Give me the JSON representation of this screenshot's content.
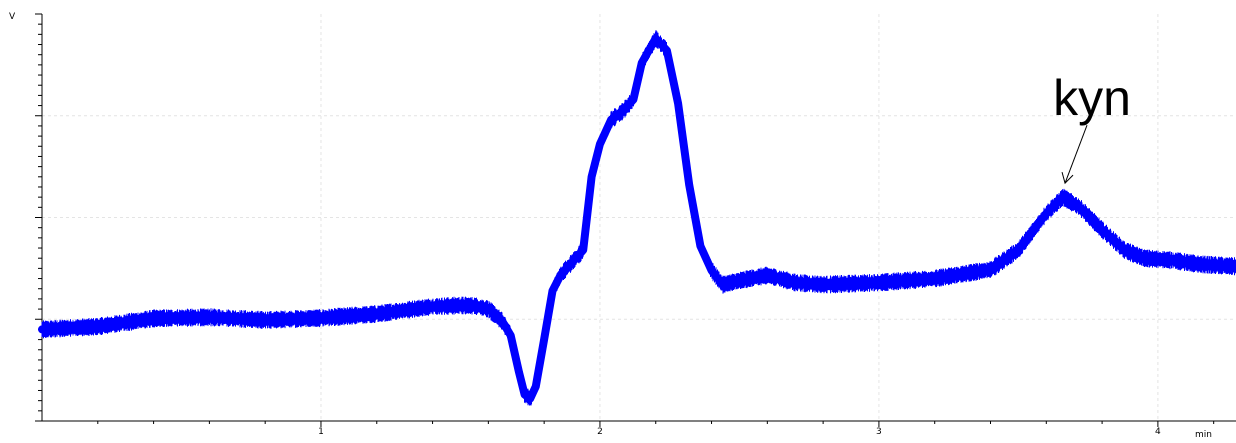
{
  "chart_data": {
    "type": "line",
    "title": "",
    "xlabel": "min",
    "ylabel": "V",
    "xlim": [
      0,
      4.28
    ],
    "ylim": [
      0,
      1
    ],
    "grid": true,
    "x_ticks": [
      1,
      2,
      3,
      4
    ],
    "x_tick_labels": [
      "1",
      "2",
      "3",
      "4"
    ],
    "series": [
      {
        "color": "#0000ff",
        "points": [
          [
            0,
            0.225
          ],
          [
            0.2,
            0.232
          ],
          [
            0.4,
            0.252
          ],
          [
            0.6,
            0.255
          ],
          [
            0.8,
            0.248
          ],
          [
            1.0,
            0.253
          ],
          [
            1.1,
            0.258
          ],
          [
            1.2,
            0.263
          ],
          [
            1.3,
            0.272
          ],
          [
            1.4,
            0.281
          ],
          [
            1.5,
            0.284
          ],
          [
            1.55,
            0.283
          ],
          [
            1.6,
            0.275
          ],
          [
            1.65,
            0.245
          ],
          [
            1.68,
            0.21
          ],
          [
            1.71,
            0.12
          ],
          [
            1.73,
            0.065
          ],
          [
            1.75,
            0.055
          ],
          [
            1.77,
            0.085
          ],
          [
            1.8,
            0.2
          ],
          [
            1.83,
            0.32
          ],
          [
            1.86,
            0.36
          ],
          [
            1.9,
            0.39
          ],
          [
            1.94,
            0.42
          ],
          [
            1.97,
            0.6
          ],
          [
            2.0,
            0.68
          ],
          [
            2.04,
            0.74
          ],
          [
            2.08,
            0.76
          ],
          [
            2.12,
            0.79
          ],
          [
            2.15,
            0.88
          ],
          [
            2.2,
            0.94
          ],
          [
            2.24,
            0.91
          ],
          [
            2.28,
            0.78
          ],
          [
            2.32,
            0.58
          ],
          [
            2.36,
            0.43
          ],
          [
            2.4,
            0.37
          ],
          [
            2.44,
            0.335
          ],
          [
            2.5,
            0.345
          ],
          [
            2.6,
            0.358
          ],
          [
            2.7,
            0.34
          ],
          [
            2.8,
            0.335
          ],
          [
            3.0,
            0.34
          ],
          [
            3.2,
            0.35
          ],
          [
            3.4,
            0.372
          ],
          [
            3.5,
            0.42
          ],
          [
            3.6,
            0.51
          ],
          [
            3.66,
            0.55
          ],
          [
            3.72,
            0.525
          ],
          [
            3.8,
            0.47
          ],
          [
            3.88,
            0.42
          ],
          [
            3.95,
            0.4
          ],
          [
            4.05,
            0.395
          ],
          [
            4.15,
            0.385
          ],
          [
            4.28,
            0.38
          ]
        ]
      }
    ],
    "annotations": [
      {
        "text": "kyn",
        "x": 3.66,
        "y": 0.55
      }
    ]
  }
}
